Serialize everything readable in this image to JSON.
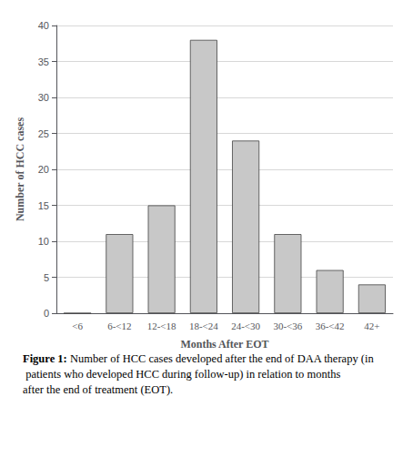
{
  "chart_data": {
    "type": "bar",
    "categories": [
      "<6",
      "6-<12",
      "12-<18",
      "18-<24",
      "24-<30",
      "30-<36",
      "36-<42",
      "42+"
    ],
    "values": [
      0,
      11,
      15,
      38,
      24,
      11,
      6,
      4
    ],
    "color": "#c8c8c8",
    "xlabel": "Months After EOT",
    "ylabel": "Number of HCC cases",
    "ylim": [
      0,
      40
    ],
    "yticks": [
      0,
      5,
      10,
      15,
      20,
      25,
      30,
      35,
      40
    ],
    "grid": true,
    "annotations": [
      "Figure 1:",
      "Number of HCC cases developed after the end of DAA therapy (in patients who developed HCC during follow-up) in relation to months after the end of treatment (EOT)."
    ]
  }
}
